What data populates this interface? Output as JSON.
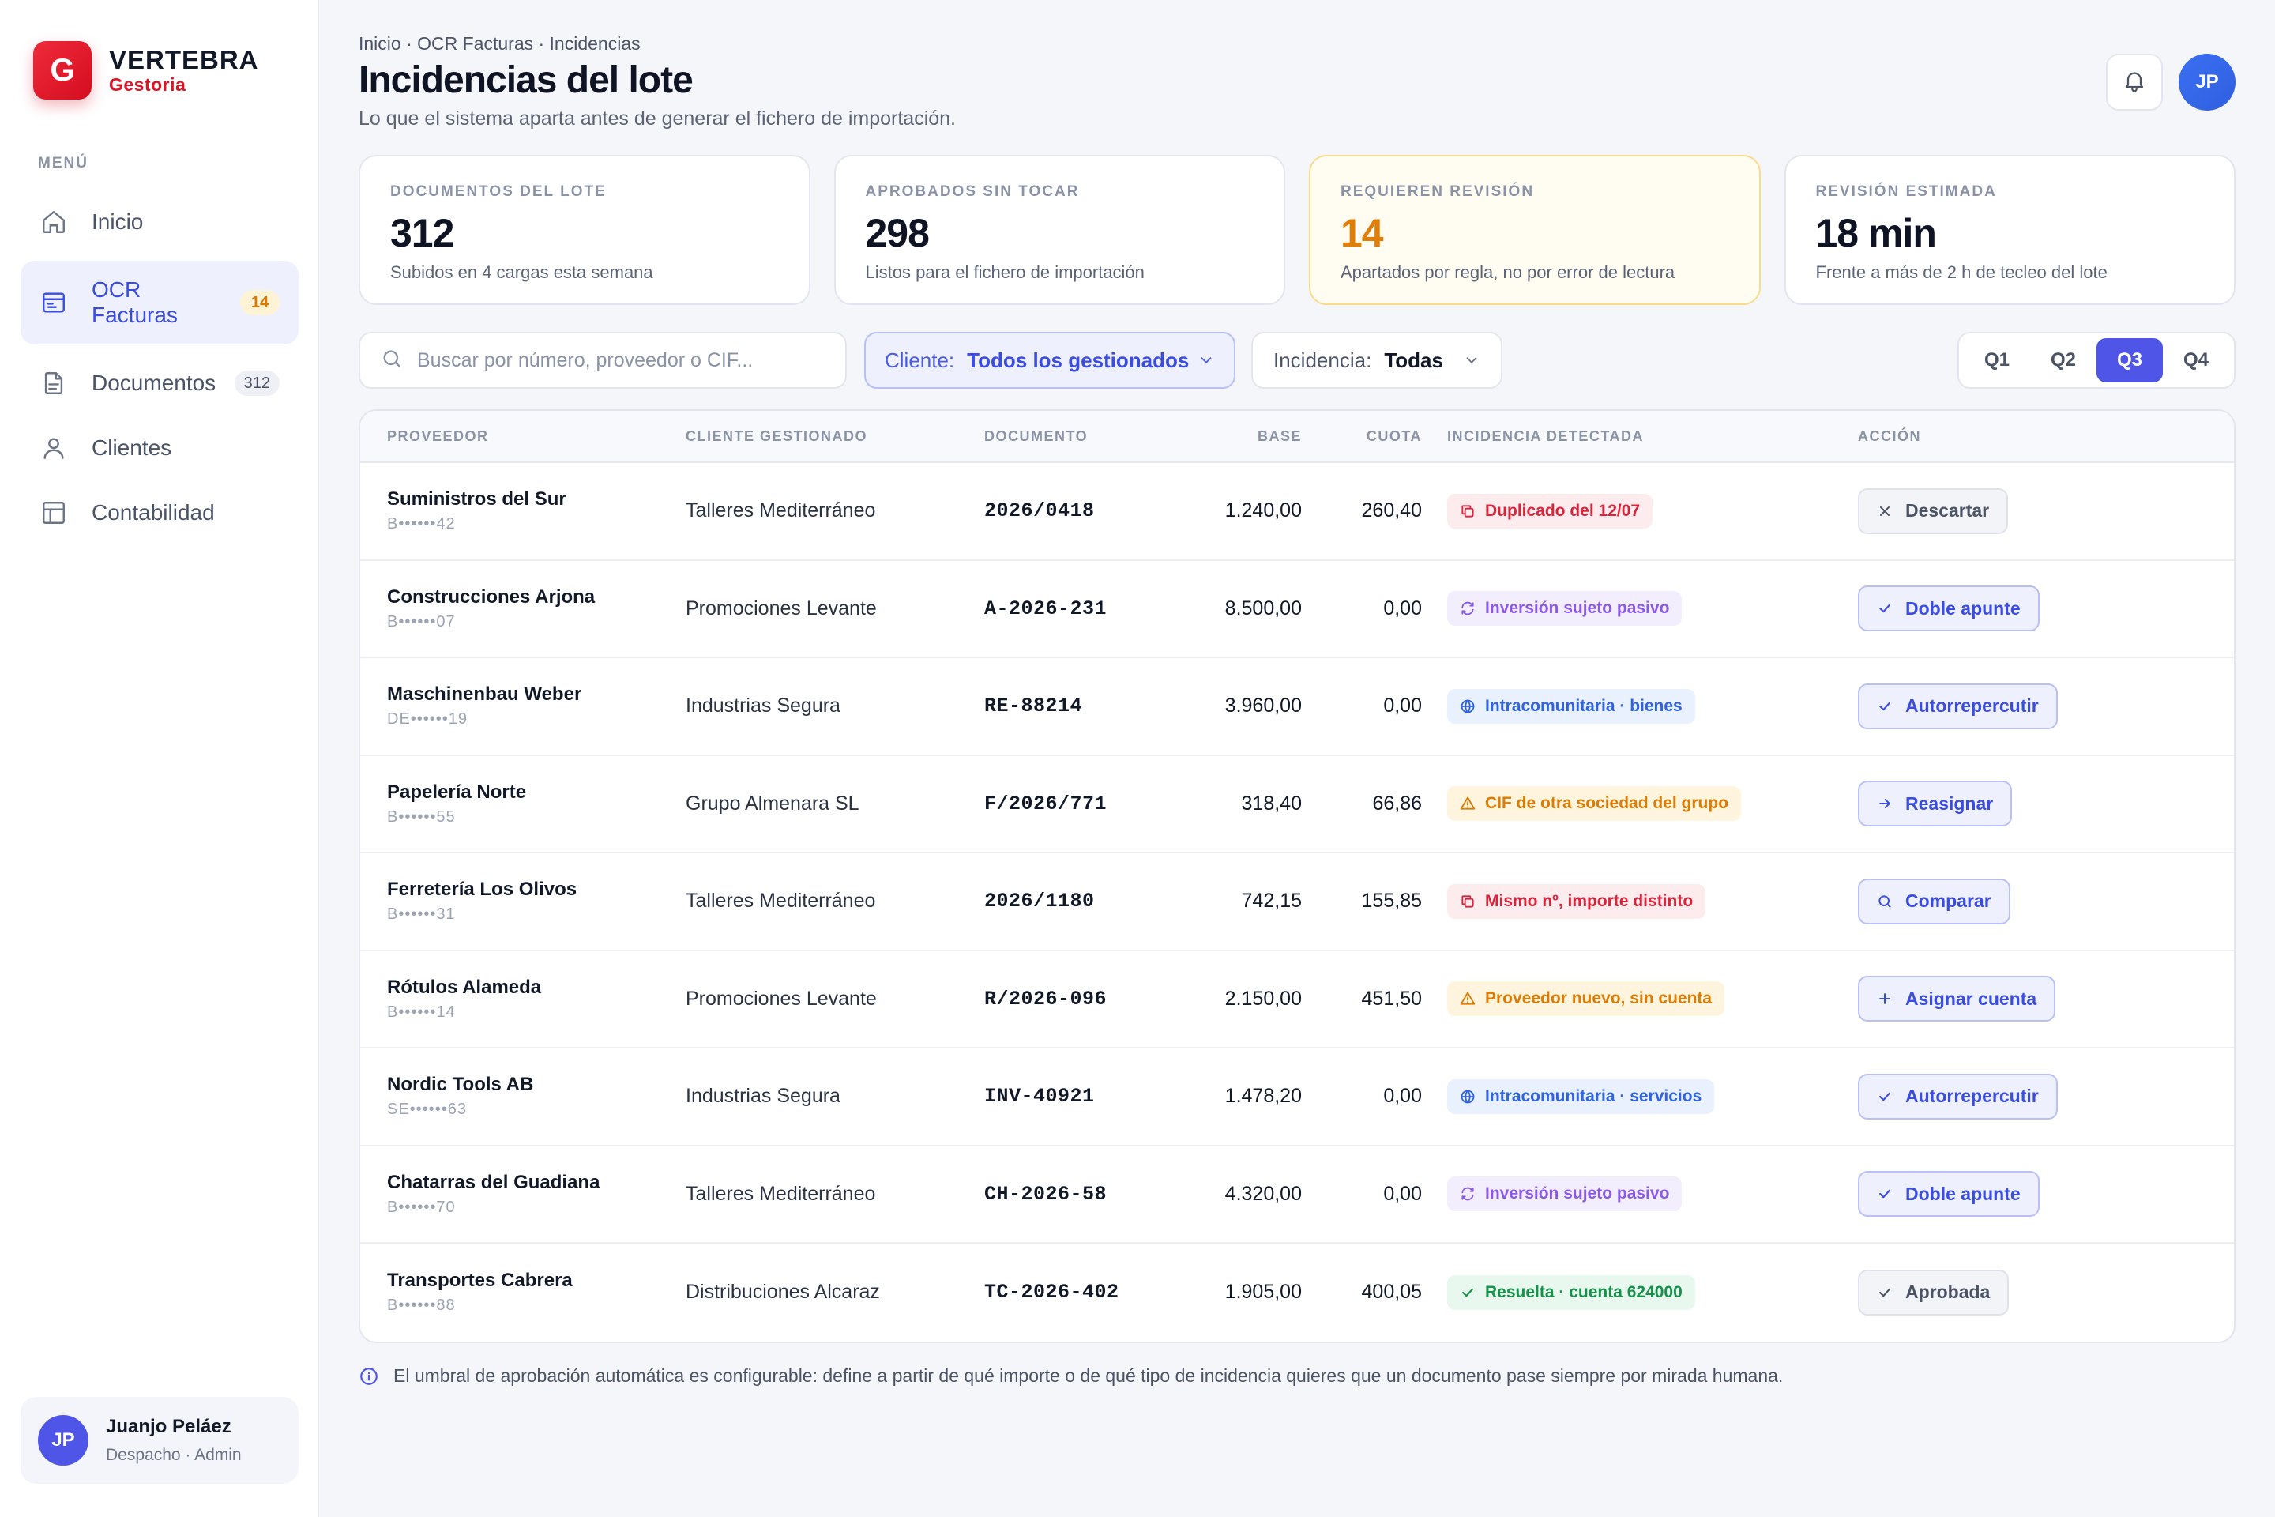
{
  "brand": {
    "logo_letter": "G",
    "name": "VERTEBRA",
    "sub": "Gestoria"
  },
  "sidebar": {
    "menu_label": "MENÚ",
    "items": [
      {
        "label": "Inicio",
        "icon": "home-icon"
      },
      {
        "label": "OCR Facturas",
        "icon": "invoice-icon",
        "badge": "14",
        "active": true
      },
      {
        "label": "Documentos",
        "icon": "document-icon",
        "badge": "312"
      },
      {
        "label": "Clientes",
        "icon": "user-icon"
      },
      {
        "label": "Contabilidad",
        "icon": "ledger-icon"
      }
    ],
    "user": {
      "initials": "JP",
      "name": "Juanjo Peláez",
      "role": "Despacho · Admin"
    }
  },
  "header": {
    "breadcrumb": "Inicio · OCR Facturas · Incidencias",
    "title": "Incidencias del lote",
    "subtitle": "Lo que el sistema aparta antes de generar el fichero de importación.",
    "avatar_initials": "JP"
  },
  "stats": [
    {
      "label": "Documentos del lote",
      "value": "312",
      "note": "Subidos en 4 cargas esta semana"
    },
    {
      "label": "Aprobados sin tocar",
      "value": "298",
      "note": "Listos para el fichero de importación"
    },
    {
      "label": "Requieren revisión",
      "value": "14",
      "note": "Apartados por regla, no por error de lectura"
    },
    {
      "label": "Revisión estimada",
      "value": "18 min",
      "note": "Frente a más de 2 h de tecleo del lote"
    }
  ],
  "filters": {
    "search_placeholder": "Buscar por número, proveedor o CIF...",
    "client_key": "Cliente:",
    "client_value": "Todos los gestionados",
    "incidence_key": "Incidencia:",
    "incidence_value": "Todas",
    "quarters": [
      "Q1",
      "Q2",
      "Q3",
      "Q4"
    ],
    "active_quarter": "Q3"
  },
  "table": {
    "headers": {
      "prov": "PROVEEDOR",
      "cli": "CLIENTE GESTIONADO",
      "doc": "DOCUMENTO",
      "base": "BASE",
      "cuota": "CUOTA",
      "inc": "INCIDENCIA DETECTADA",
      "acc": "ACCIÓN"
    },
    "rows": [
      {
        "prov": "Suministros del Sur",
        "cif": "B••••••42",
        "cli": "Talleres Mediterráneo",
        "doc": "2026/0418",
        "base": "1.240,00",
        "cuota": "260,40",
        "inc": "Duplicado del 12/07",
        "acc": "Descartar"
      },
      {
        "prov": "Construcciones Arjona",
        "cif": "B••••••07",
        "cli": "Promociones Levante",
        "doc": "A-2026-231",
        "base": "8.500,00",
        "cuota": "0,00",
        "inc": "Inversión sujeto pasivo",
        "acc": "Doble apunte"
      },
      {
        "prov": "Maschinenbau Weber",
        "cif": "DE••••••19",
        "cli": "Industrias Segura",
        "doc": "RE-88214",
        "base": "3.960,00",
        "cuota": "0,00",
        "inc": "Intracomunitaria · bienes",
        "acc": "Autorrepercutir"
      },
      {
        "prov": "Papelería Norte",
        "cif": "B••••••55",
        "cli": "Grupo Almenara SL",
        "doc": "F/2026/771",
        "base": "318,40",
        "cuota": "66,86",
        "inc": "CIF de otra sociedad del grupo",
        "acc": "Reasignar"
      },
      {
        "prov": "Ferretería Los Olivos",
        "cif": "B••••••31",
        "cli": "Talleres Mediterráneo",
        "doc": "2026/1180",
        "base": "742,15",
        "cuota": "155,85",
        "inc": "Mismo nº, importe distinto",
        "acc": "Comparar"
      },
      {
        "prov": "Rótulos Alameda",
        "cif": "B••••••14",
        "cli": "Promociones Levante",
        "doc": "R/2026-096",
        "base": "2.150,00",
        "cuota": "451,50",
        "inc": "Proveedor nuevo, sin cuenta",
        "acc": "Asignar cuenta"
      },
      {
        "prov": "Nordic Tools AB",
        "cif": "SE••••••63",
        "cli": "Industrias Segura",
        "doc": "INV-40921",
        "base": "1.478,20",
        "cuota": "0,00",
        "inc": "Intracomunitaria · servicios",
        "acc": "Autorrepercutir"
      },
      {
        "prov": "Chatarras del Guadiana",
        "cif": "B••••••70",
        "cli": "Talleres Mediterráneo",
        "doc": "CH-2026-58",
        "base": "4.320,00",
        "cuota": "0,00",
        "inc": "Inversión sujeto pasivo",
        "acc": "Doble apunte"
      },
      {
        "prov": "Transportes Cabrera",
        "cif": "B••••••88",
        "cli": "Distribuciones Alcaraz",
        "doc": "TC-2026-402",
        "base": "1.905,00",
        "cuota": "400,05",
        "inc": "Resuelta · cuenta 624000",
        "acc": "Aprobada"
      }
    ]
  },
  "footnote": "El umbral de aprobación automática es configurable: define a partir de qué importe o de qué tipo de incidencia quieres que un documento pase siempre por mirada humana."
}
